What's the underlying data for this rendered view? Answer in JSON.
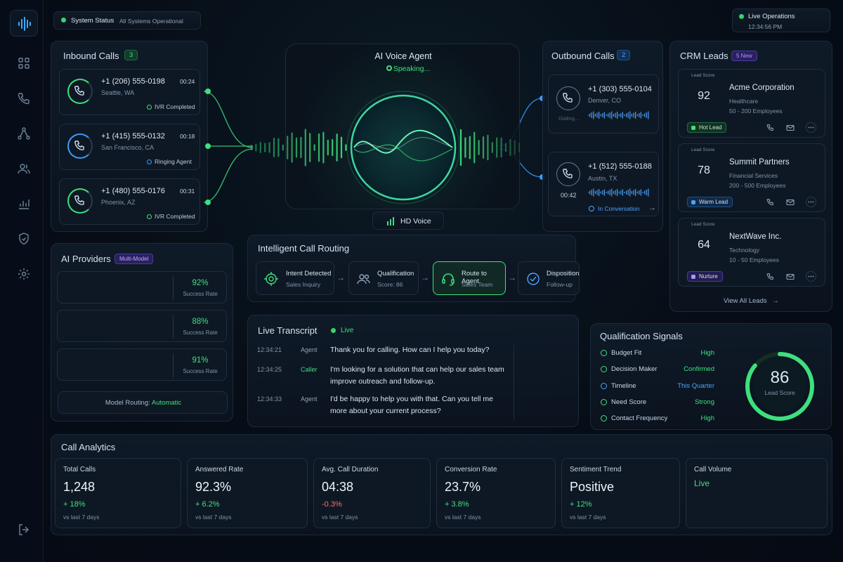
{
  "status_bar": {
    "label": "System Status",
    "value": "All Systems Operational"
  },
  "live_ops": {
    "label": "Live Operations",
    "time": "12:34:56 PM"
  },
  "sidebar": {
    "icons": [
      "waveform-icon",
      "dashboard-icon",
      "phone-icon",
      "network-icon",
      "users-icon",
      "chart-icon",
      "shield-icon",
      "gear-icon",
      "logout-icon"
    ]
  },
  "inbound": {
    "title": "Inbound Calls",
    "count": "3",
    "calls": [
      {
        "number": "+1 (206) 555-0198",
        "location": "Seattle, WA",
        "duration": "00:24",
        "status": "IVR Completed"
      },
      {
        "number": "+1 (415) 555-0132",
        "location": "San Francisco, CA",
        "duration": "00:18",
        "status": "Ringing Agent"
      },
      {
        "number": "+1 (480) 555-0176",
        "location": "Phoenix, AZ",
        "duration": "00:31",
        "status": "IVR Completed"
      }
    ]
  },
  "agent": {
    "title": "AI Voice Agent",
    "status": "Speaking...",
    "hd": "HD Voice"
  },
  "outbound": {
    "title": "Outbound Calls",
    "count": "2",
    "calls": [
      {
        "number": "+1 (303) 555-0104",
        "location": "Denver, CO",
        "state": "Dialing..."
      },
      {
        "number": "+1 (512) 555-0188",
        "location": "Austin, TX",
        "duration": "00:42",
        "status": "In Conversation"
      }
    ]
  },
  "crm": {
    "title": "CRM Leads",
    "badge": "5 New",
    "score_label": "Lead Score",
    "view_all": "View All Leads",
    "leads": [
      {
        "score": "92",
        "name": "Acme Corporation",
        "industry": "Healthcare",
        "size": "50 - 200 Employees",
        "tag": "Hot Lead",
        "pct": 0.92,
        "color": "#3ee07e"
      },
      {
        "score": "78",
        "name": "Summit Partners",
        "industry": "Financial Services",
        "size": "200 - 500 Employees",
        "tag": "Warm Lead",
        "pct": 0.78,
        "color": "#3a9cff"
      },
      {
        "score": "64",
        "name": "NextWave Inc.",
        "industry": "Technology",
        "size": "10 - 50 Employees",
        "tag": "Nurture",
        "pct": 0.64,
        "color": "#8a6cff"
      }
    ]
  },
  "providers": {
    "title": "AI Providers",
    "badge": "Multi-Model",
    "items": [
      {
        "rate": "92%",
        "label": "Success Rate",
        "color": "#3ee07e"
      },
      {
        "rate": "88%",
        "label": "Success Rate",
        "color": "#32b8ff"
      },
      {
        "rate": "91%",
        "label": "Success Rate",
        "color": "#8a6cff"
      }
    ],
    "routing_label": "Model Routing:",
    "routing_value": "Automatic"
  },
  "routing": {
    "title": "Intelligent Call Routing",
    "steps": [
      {
        "name": "Intent Detected",
        "detail": "Sales Inquiry"
      },
      {
        "name": "Qualification",
        "detail": "Score: 86"
      },
      {
        "name": "Route to Agent",
        "detail": "Sales Team"
      },
      {
        "name": "Disposition",
        "detail": "Follow-up"
      }
    ]
  },
  "transcript": {
    "title": "Live Transcript",
    "live": "Live",
    "lines": [
      {
        "time": "12:34:21",
        "speaker": "Agent",
        "text1": "Thank you for calling. How can I help you today?",
        "text2": ""
      },
      {
        "time": "12:34:25",
        "speaker": "Caller",
        "text1": "I'm looking for a solution that can help our sales team",
        "text2": "improve outreach and follow-up."
      },
      {
        "time": "12:34:33",
        "speaker": "Agent",
        "text1": "I'd be happy to help you with that. Can you tell me",
        "text2": "more about your current process?"
      }
    ]
  },
  "signals": {
    "title": "Qualification Signals",
    "score": "86",
    "score_label": "Lead Score",
    "pct": 0.86,
    "items": [
      {
        "name": "Budget Fit",
        "value": "High",
        "color": "#3ee07e"
      },
      {
        "name": "Decision Maker",
        "value": "Confirmed",
        "color": "#3ee07e"
      },
      {
        "name": "Timeline",
        "value": "This Quarter",
        "color": "#4aa3ff"
      },
      {
        "name": "Need Score",
        "value": "Strong",
        "color": "#3ee07e"
      },
      {
        "name": "Contact Frequency",
        "value": "High",
        "color": "#3ee07e"
      }
    ]
  },
  "analytics": {
    "title": "Call Analytics",
    "cards": [
      {
        "label": "Total Calls",
        "value": "1,248",
        "delta": "+ 18%",
        "period": "vs last 7 days",
        "trend": "up"
      },
      {
        "label": "Answered Rate",
        "value": "92.3%",
        "delta": "+ 6.2%",
        "period": "vs last 7 days",
        "trend": "up"
      },
      {
        "label": "Avg. Call Duration",
        "value": "04:38",
        "delta": "-0.3%",
        "period": "vs last 7 days",
        "trend": "down"
      },
      {
        "label": "Conversion Rate",
        "value": "23.7%",
        "delta": "+ 3.8%",
        "period": "vs last 7 days",
        "trend": "up"
      },
      {
        "label": "Sentiment Trend",
        "value": "Positive",
        "delta": "+ 12%",
        "period": "vs last 7 days",
        "trend": "up"
      },
      {
        "label": "Call Volume",
        "value": "Live",
        "delta": "",
        "period": "",
        "trend": "up"
      }
    ]
  }
}
